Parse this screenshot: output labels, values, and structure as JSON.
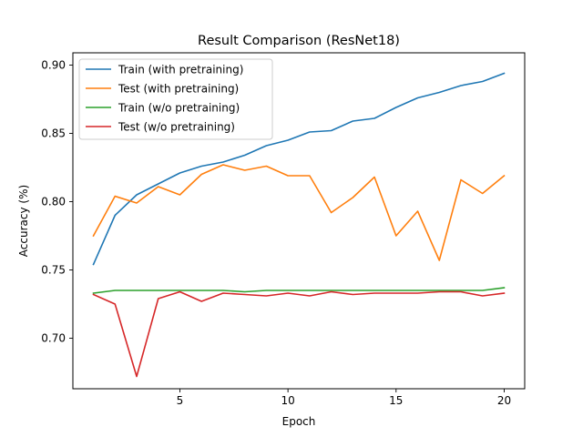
{
  "chart_data": {
    "type": "line",
    "title": "Result Comparison (ResNet18)",
    "xlabel": "Epoch",
    "ylabel": "Accuracy (%)",
    "xlim": [
      0.05,
      20.95
    ],
    "ylim": [
      0.663,
      0.909
    ],
    "xticks": [
      5,
      10,
      15,
      20
    ],
    "yticks": [
      0.7,
      0.75,
      0.8,
      0.85,
      0.9
    ],
    "ytick_labels": [
      "0.70",
      "0.75",
      "0.80",
      "0.85",
      "0.90"
    ],
    "grid": false,
    "legend_position": "upper-left",
    "x": [
      1,
      2,
      3,
      4,
      5,
      6,
      7,
      8,
      9,
      10,
      11,
      12,
      13,
      14,
      15,
      16,
      17,
      18,
      19,
      20
    ],
    "series": [
      {
        "name": "Train (with pretraining)",
        "color": "#1f77b4",
        "values": [
          0.754,
          0.79,
          0.805,
          0.813,
          0.821,
          0.826,
          0.829,
          0.834,
          0.841,
          0.845,
          0.851,
          0.852,
          0.859,
          0.861,
          0.869,
          0.876,
          0.88,
          0.885,
          0.888,
          0.894
        ]
      },
      {
        "name": "Test (with pretraining)",
        "color": "#ff7f0e",
        "values": [
          0.775,
          0.804,
          0.799,
          0.811,
          0.805,
          0.82,
          0.827,
          0.823,
          0.826,
          0.819,
          0.819,
          0.792,
          0.803,
          0.818,
          0.775,
          0.793,
          0.757,
          0.816,
          0.806,
          0.819
        ]
      },
      {
        "name": "Train (w/o pretraining)",
        "color": "#2ca02c",
        "values": [
          0.733,
          0.735,
          0.735,
          0.735,
          0.735,
          0.735,
          0.735,
          0.734,
          0.735,
          0.735,
          0.735,
          0.735,
          0.735,
          0.735,
          0.735,
          0.735,
          0.735,
          0.735,
          0.735,
          0.737
        ]
      },
      {
        "name": "Test (w/o pretraining)",
        "color": "#d62728",
        "values": [
          0.732,
          0.725,
          0.672,
          0.729,
          0.734,
          0.727,
          0.733,
          0.732,
          0.731,
          0.733,
          0.731,
          0.734,
          0.732,
          0.733,
          0.733,
          0.733,
          0.734,
          0.734,
          0.731,
          0.733
        ]
      }
    ]
  }
}
